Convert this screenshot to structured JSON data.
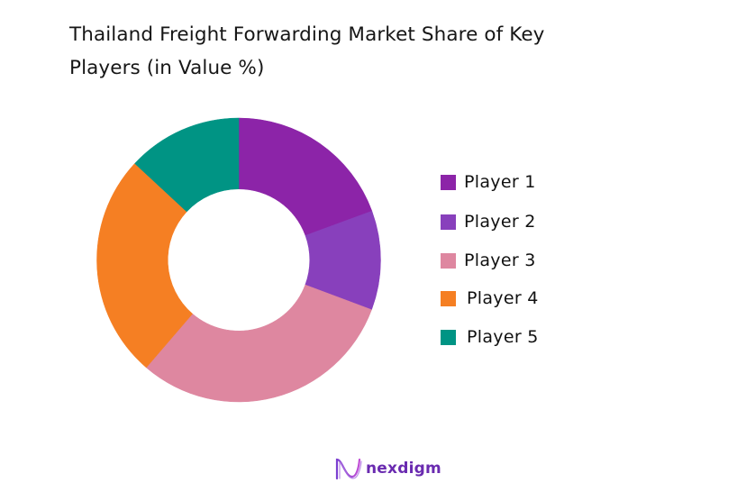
{
  "title": "Thailand Freight Forwarding Market Share of Key Players (in Value %)",
  "title_lines": [
    "Thailand Freight Forwarding Market Share of Key",
    "Players (in Value %)"
  ],
  "brand": {
    "name": "nexdigm",
    "icon": "nexdigm-wave-logo-icon",
    "color": "#6a2bb0"
  },
  "chart_data": {
    "type": "pie",
    "subtype": "donut",
    "title": "Thailand Freight Forwarding Market Share of Key Players (in Value %)",
    "categories": [
      "Player 1",
      "Player 2",
      "Player 3",
      "Player 4",
      "Player 5"
    ],
    "values": [
      19.4,
      11.3,
      30.6,
      25.6,
      13.1
    ],
    "unit": "%",
    "colors": [
      "#8c24a8",
      "#8840bc",
      "#de87a0",
      "#f57f23",
      "#009484"
    ],
    "start_angle_deg": 0,
    "direction": "clockwise",
    "inner_radius_ratio": 0.5,
    "data_labels": false,
    "legend_position": "right",
    "xlabel": "",
    "ylabel": ""
  },
  "legend": {
    "items": [
      {
        "label": "Player 1",
        "color": "#8c24a8"
      },
      {
        "label": "Player 2",
        "color": "#8840bc"
      },
      {
        "label": "Player 3",
        "color": "#de87a0"
      },
      {
        "label": "Player 4",
        "color": "#f57f23"
      },
      {
        "label": "Player 5",
        "color": "#009484"
      }
    ]
  }
}
